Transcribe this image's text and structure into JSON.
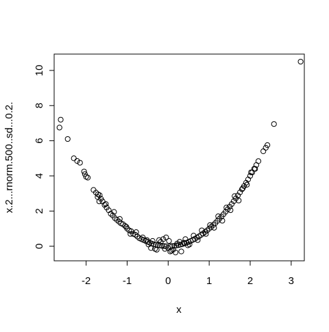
{
  "chart_data": {
    "type": "scatter",
    "title": "",
    "xlabel": "x",
    "ylabel": "x.2...rnorm.500..sd...0.2.",
    "xlim": [
      -2.78,
      3.32
    ],
    "ylim": [
      -0.83,
      10.93
    ],
    "xticks": [
      -2,
      -1,
      0,
      1,
      2,
      3
    ],
    "yticks": [
      0,
      2,
      4,
      6,
      8,
      10
    ],
    "grid": false,
    "legend": "none",
    "marker": "open-circle",
    "colors": {
      "points": "#000000",
      "axes": "#000000",
      "background": "#ffffff"
    },
    "x": [
      -2.65,
      -2.62,
      -2.45,
      -2.3,
      -2.22,
      -2.15,
      -2.05,
      -2.03,
      -2.0,
      -1.96,
      -1.82,
      -1.76,
      -1.71,
      -1.67,
      -1.64,
      -1.6,
      -1.55,
      -1.5,
      -1.45,
      -1.4,
      -1.35,
      -1.3,
      -1.25,
      -1.2,
      -1.15,
      -1.1,
      -1.05,
      -1.0,
      -0.95,
      -0.9,
      -0.85,
      -0.8,
      -0.75,
      -0.7,
      -0.65,
      -0.6,
      -0.55,
      -0.5,
      -0.45,
      -0.4,
      -0.35,
      -0.3,
      -0.25,
      -0.2,
      -0.15,
      -0.1,
      -0.05,
      0.0,
      0.05,
      0.1,
      0.15,
      0.2,
      0.25,
      0.3,
      0.35,
      0.4,
      0.45,
      0.5,
      0.55,
      0.6,
      0.65,
      0.7,
      0.75,
      0.8,
      0.85,
      0.9,
      0.95,
      1.0,
      1.05,
      1.1,
      1.15,
      1.2,
      1.25,
      1.3,
      1.35,
      1.4,
      1.45,
      1.5,
      1.55,
      1.6,
      1.65,
      1.7,
      1.75,
      1.8,
      1.85,
      1.9,
      1.95,
      2.0,
      2.05,
      2.1,
      2.15,
      2.2,
      2.32,
      2.38,
      2.42,
      2.58,
      3.23,
      -1.72,
      -1.68,
      -1.52,
      -1.32,
      -1.18,
      -1.02,
      -0.92,
      -0.78,
      -0.62,
      -0.48,
      -0.38,
      -0.28,
      -0.18,
      -0.08,
      0.02,
      0.12,
      0.22,
      0.32,
      0.42,
      0.52,
      0.62,
      0.72,
      0.82,
      0.92,
      1.02,
      1.12,
      1.22,
      1.32,
      1.42,
      1.52,
      1.62,
      1.72,
      1.82,
      1.92,
      2.02,
      2.12,
      -0.52,
      -0.32,
      -0.12,
      0.08,
      0.28,
      0.48,
      -0.42,
      -0.22,
      0.18,
      0.38,
      -0.05,
      0.05
    ],
    "y": [
      6.75,
      7.2,
      6.1,
      5.0,
      4.85,
      4.75,
      4.25,
      4.1,
      3.95,
      3.9,
      3.2,
      3.05,
      2.95,
      2.9,
      2.7,
      2.55,
      2.35,
      2.2,
      2.05,
      1.85,
      1.75,
      1.6,
      1.5,
      1.4,
      1.3,
      1.25,
      1.15,
      1.0,
      0.9,
      0.85,
      0.7,
      0.65,
      0.55,
      0.45,
      0.4,
      0.35,
      0.3,
      0.25,
      0.2,
      0.15,
      0.1,
      0.08,
      0.06,
      0.05,
      0.02,
      0.01,
      0.0,
      -0.1,
      0.0,
      0.01,
      0.02,
      0.04,
      0.06,
      0.09,
      0.12,
      0.16,
      0.2,
      0.25,
      0.3,
      0.36,
      0.42,
      0.49,
      0.56,
      0.64,
      0.72,
      0.81,
      0.9,
      1.0,
      1.1,
      1.21,
      1.32,
      1.44,
      1.56,
      1.69,
      1.82,
      1.96,
      2.1,
      2.25,
      2.4,
      2.56,
      2.72,
      2.89,
      3.06,
      3.24,
      3.42,
      3.61,
      3.8,
      4.0,
      4.2,
      4.41,
      4.62,
      4.84,
      5.4,
      5.6,
      5.75,
      6.95,
      10.5,
      2.8,
      2.55,
      2.4,
      1.95,
      1.55,
      1.1,
      0.7,
      0.8,
      0.5,
      0.1,
      0.3,
      -0.2,
      0.25,
      -0.15,
      0.3,
      -0.2,
      0.15,
      -0.3,
      0.4,
      0.1,
      0.6,
      0.35,
      0.9,
      0.7,
      1.2,
      1.05,
      1.7,
      1.45,
      2.2,
      2.05,
      2.85,
      2.6,
      3.3,
      3.5,
      4.2,
      4.4,
      0.35,
      -0.15,
      0.4,
      -0.25,
      0.25,
      0.05,
      -0.1,
      0.35,
      -0.35,
      0.2,
      0.5,
      -0.3
    ]
  }
}
